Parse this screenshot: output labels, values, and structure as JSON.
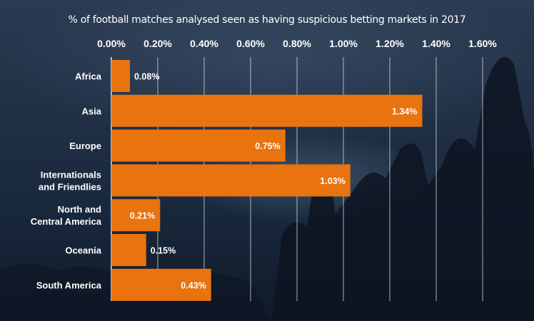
{
  "chart_data": {
    "type": "bar",
    "orientation": "horizontal",
    "title": "% of football matches analysed seen as having suspicious betting markets in 2017",
    "categories": [
      [
        "Africa"
      ],
      [
        "Asia"
      ],
      [
        "Europe"
      ],
      [
        "Internationals",
        "and Friendlies"
      ],
      [
        "North and",
        "Central America"
      ],
      [
        "Oceania"
      ],
      [
        "South America"
      ]
    ],
    "values": [
      0.08,
      1.34,
      0.75,
      1.03,
      0.21,
      0.15,
      0.43
    ],
    "value_labels": [
      "0.08%",
      "1.34%",
      "0.75%",
      "1.03%",
      "0.21%",
      "0.15%",
      "0.43%"
    ],
    "ticks": [
      "0.00%",
      "0.20%",
      "0.40%",
      "0.60%",
      "0.80%",
      "1.00%",
      "1.20%",
      "1.40%",
      "1.60%"
    ],
    "xlim": [
      0,
      1.6
    ],
    "x_axis_position": "top",
    "grid": true,
    "bar_color": "#e8730f"
  }
}
